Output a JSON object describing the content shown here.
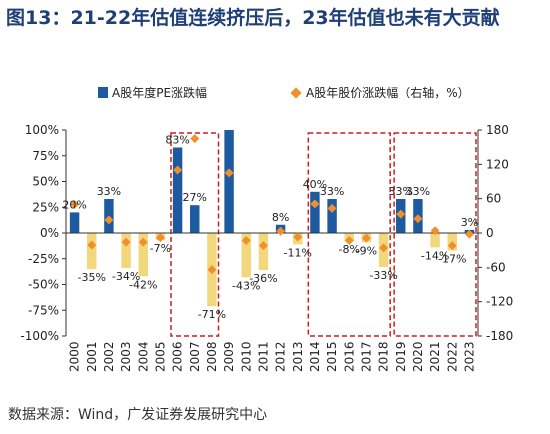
{
  "title": "图13：21-22年估值连续挤压后，23年估值也未有大贡献",
  "source": "数据来源：Wind，广发证券发展研究中心",
  "colors": {
    "bar_pos": "#1e5aa0",
    "bar_neg": "#f2d77c",
    "marker": "#f0902a",
    "box": "#cc1f1f"
  },
  "chart_data": {
    "type": "bar",
    "categories": [
      "2000",
      "2001",
      "2002",
      "2003",
      "2004",
      "2005",
      "2006",
      "2007",
      "2008",
      "2009",
      "2010",
      "2011",
      "2012",
      "2013",
      "2014",
      "2015",
      "2016",
      "2017",
      "2018",
      "2019",
      "2020",
      "2021",
      "2022",
      "2023"
    ],
    "series": [
      {
        "name": "A股年度PE涨跌幅",
        "type": "bar",
        "axis": "left",
        "values": [
          20,
          -35,
          33,
          -34,
          -42,
          -7,
          83,
          27,
          -71,
          100,
          -43,
          -36,
          8,
          -11,
          40,
          33,
          -8,
          -9,
          -33,
          33,
          33,
          -14,
          -17,
          3
        ],
        "labels": [
          "20%",
          "-35%",
          "33%",
          "-34%",
          "-42%",
          "-7%",
          "83%",
          "27%",
          "-71%",
          "",
          "-43%",
          "-36%",
          "8%",
          "-11%",
          "40%",
          "33%",
          "-8%",
          "-9%",
          "-33%",
          "33%",
          "33%",
          "-14%",
          "-17%",
          "3%"
        ]
      },
      {
        "name": "A股年股价涨跌幅（右轴，%）",
        "type": "scatter",
        "axis": "right",
        "values": [
          50,
          -21,
          23,
          -16,
          -16,
          -8,
          110,
          165,
          -64,
          105,
          -13,
          -22,
          3,
          -7,
          51,
          43,
          -13,
          -9,
          -26,
          33,
          25,
          4,
          -22,
          -2
        ]
      }
    ],
    "y_left": {
      "min": -100,
      "max": 100,
      "ticks": [
        100,
        75,
        50,
        25,
        0,
        -25,
        -50,
        -75,
        -100
      ],
      "tick_labels": [
        "100%",
        "75%",
        "50%",
        "25%",
        "0%",
        "-25%",
        "-50%",
        "-75%",
        "-100%"
      ]
    },
    "y_right": {
      "min": -180,
      "max": 180,
      "ticks": [
        180,
        120,
        60,
        0,
        -60,
        -120,
        -180
      ],
      "tick_labels": [
        "180",
        "120",
        "60",
        "0",
        "-60",
        "-120",
        "-180"
      ]
    },
    "highlight_ranges": [
      [
        "2006",
        "2008"
      ],
      [
        "2014",
        "2018"
      ],
      [
        "2019",
        "2023"
      ]
    ],
    "legend_position": "top"
  }
}
